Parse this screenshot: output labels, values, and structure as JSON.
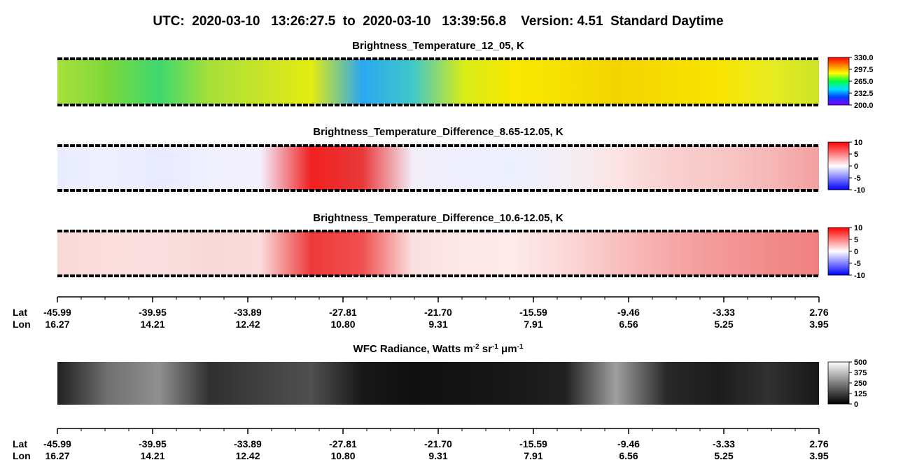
{
  "title": "UTC:  2020-03-10   13:26:27.5  to  2020-03-10   13:39:56.8    Version: 4.51  Standard Daytime",
  "chart_data": [
    {
      "type": "image",
      "title_parts": [
        "Brightness_Temperature_12_05, K"
      ],
      "image_colors": [
        "#a8e03a",
        "#7cd83a",
        "#3ed870",
        "#a6e038",
        "#c8e428",
        "#e4ec10",
        "#2aa8f0",
        "#40c8c8",
        "#d8ec18",
        "#f8e800",
        "#f6e000",
        "#f4d400",
        "#f6dc00",
        "#f8e400",
        "#e8ec20",
        "#cce428"
      ],
      "colormap": [
        "#8000ff",
        "#0040ff",
        "#00e0ff",
        "#00ff40",
        "#ffff00",
        "#ff8000",
        "#ff0000"
      ],
      "clim": [
        200,
        330
      ],
      "cticks": [
        {
          "value": 200,
          "label": "200.0"
        },
        {
          "value": 232.5,
          "label": "232.5"
        },
        {
          "value": 265,
          "label": "265.0"
        },
        {
          "value": 297.5,
          "label": "297.5"
        },
        {
          "value": 330,
          "label": "330.0"
        }
      ]
    },
    {
      "type": "image",
      "title_parts": [
        "Brightness_Temperature_Difference_8.65-12.05, K"
      ],
      "image_colors": [
        "#e8ecff",
        "#eef0ff",
        "#e8eaff",
        "#f0f0ff",
        "#f4f0ff",
        "#f02020",
        "#e83838",
        "#f2eef8",
        "#eeeeff",
        "#ecefff",
        "#f4eef4",
        "#fce4e4",
        "#fad0d0",
        "#f8c8c8",
        "#f6b8b8",
        "#f4a0a0"
      ],
      "colormap": [
        "#0000ff",
        "#8080ff",
        "#ffffff",
        "#ff8080",
        "#ff0000"
      ],
      "clim": [
        -10,
        10
      ],
      "cticks": [
        -10,
        -5,
        0,
        5,
        10
      ]
    },
    {
      "type": "image",
      "title_parts": [
        "Brightness_Temperature_Difference_10.6-12.05, K"
      ],
      "image_colors": [
        "#fbd8d8",
        "#fcdede",
        "#fae0e0",
        "#f8d8d8",
        "#fadcdc",
        "#ec3a3a",
        "#f05050",
        "#fae0e0",
        "#fde8e8",
        "#fdeaea",
        "#fbd8d8",
        "#f8c0c0",
        "#f6aaaa",
        "#f49898",
        "#f28c8c",
        "#f08080"
      ],
      "colormap": [
        "#0000ff",
        "#8080ff",
        "#ffffff",
        "#ff8080",
        "#ff0000"
      ],
      "clim": [
        -10,
        10
      ],
      "cticks": [
        -10,
        -5,
        0,
        5,
        10
      ]
    },
    {
      "type": "image",
      "title_parts": [
        "WFC Radiance, Watts m",
        "-2",
        " sr",
        "-1",
        " μm",
        "-1"
      ],
      "image_colors": [
        "#202020",
        "#707070",
        "#909090",
        "#303030",
        "#404040",
        "#505050",
        "#181818",
        "#101010",
        "#141414",
        "#181818",
        "#202020",
        "#a0a0a0",
        "#282828",
        "#1c1c1c",
        "#303030",
        "#181818"
      ],
      "colormap": [
        "#000000",
        "#ffffff"
      ],
      "clim": [
        0,
        500
      ],
      "cticks": [
        0,
        125,
        250,
        375,
        500
      ]
    }
  ],
  "lat_lon_axes": [
    {
      "lat_label": "Lat",
      "lon_label": "Lon",
      "lat": [
        "-45.99",
        "-39.95",
        "-33.89",
        "-27.81",
        "-21.70",
        "-15.59",
        "-9.46",
        "-3.33",
        "2.76"
      ],
      "lon": [
        "16.27",
        "14.21",
        "12.42",
        "10.80",
        "9.31",
        "7.91",
        "6.56",
        "5.25",
        "3.95"
      ]
    },
    {
      "lat_label": "Lat",
      "lon_label": "Lon",
      "lat": [
        "-45.99",
        "-39.95",
        "-33.89",
        "-27.81",
        "-21.70",
        "-15.59",
        "-9.46",
        "-3.33",
        "2.76"
      ],
      "lon": [
        "16.27",
        "14.21",
        "12.42",
        "10.80",
        "9.31",
        "7.91",
        "6.56",
        "5.25",
        "3.95"
      ]
    }
  ]
}
